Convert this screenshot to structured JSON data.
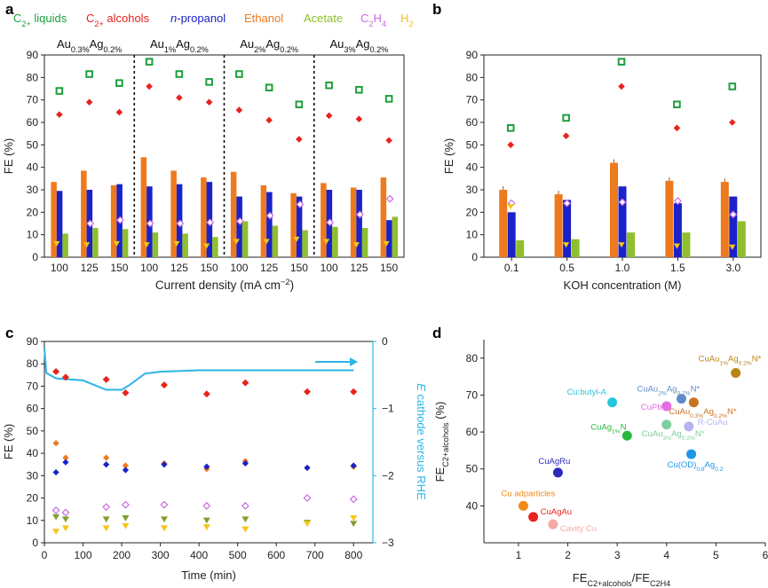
{
  "colors": {
    "c2_liquids": "#1e9e3e",
    "c2_alcohols": "#e8231e",
    "n_propanol": "#1a22c8",
    "ethanol": "#ee7a1e",
    "acetate": "#8fbf2e",
    "c2h4": "#cc6ce0",
    "h2": "#f5c518",
    "potential": "#2bb5e6"
  },
  "legend": [
    "C2+ liquids",
    "C2+ alcohols",
    "n-propanol",
    "Ethanol",
    "Acetate",
    "C2H4",
    "H2"
  ],
  "chart_data": [
    {
      "panel": "a",
      "type": "bar",
      "ylabel": "FE (%)",
      "xlabel": "Current density (mA cm−2)",
      "ylim": [
        0,
        90
      ],
      "yticks": [
        0,
        10,
        20,
        30,
        40,
        50,
        60,
        70,
        80,
        90
      ],
      "groups": [
        {
          "label": "Au0.3%Ag0.2%",
          "categories": [
            "100",
            "125",
            "150"
          ],
          "ethanol": [
            33.5,
            38.5,
            32
          ],
          "n_propanol": [
            29.5,
            30,
            32.5
          ],
          "acetate": [
            10.5,
            13,
            12.5
          ],
          "c2h4": [
            null,
            15,
            16.5
          ],
          "h2": [
            6,
            5.5,
            6
          ],
          "c2_liquids": [
            74,
            81.5,
            77.5
          ],
          "c2_alcohols": [
            63.5,
            69,
            64.5
          ]
        },
        {
          "label": "Au1%Ag0.2%",
          "categories": [
            "100",
            "125",
            "150"
          ],
          "ethanol": [
            44.5,
            38.5,
            35.5
          ],
          "n_propanol": [
            31.5,
            32.5,
            33.5
          ],
          "acetate": [
            11,
            10.5,
            9
          ],
          "c2h4": [
            15,
            15,
            15.5
          ],
          "h2": [
            5.5,
            6,
            5
          ],
          "c2_liquids": [
            87,
            81.5,
            78
          ],
          "c2_alcohols": [
            76,
            71,
            69
          ]
        },
        {
          "label": "Au2%Ag0.2%",
          "categories": [
            "100",
            "125",
            "150"
          ],
          "ethanol": [
            38,
            32,
            28.5
          ],
          "n_propanol": [
            27,
            29,
            27
          ],
          "acetate": [
            16,
            14,
            12
          ],
          "c2h4": [
            16,
            18.5,
            23.5
          ],
          "h2": [
            7,
            7,
            8
          ],
          "c2_liquids": [
            81.5,
            75.5,
            68
          ],
          "c2_alcohols": [
            65.5,
            61,
            52.5
          ]
        },
        {
          "label": "Au3%Ag0.2%",
          "categories": [
            "100",
            "125",
            "150"
          ],
          "ethanol": [
            33,
            31,
            35.5
          ],
          "n_propanol": [
            30,
            30,
            16.5
          ],
          "acetate": [
            13.5,
            13,
            18
          ],
          "c2h4": [
            15.5,
            19,
            26
          ],
          "h2": [
            7,
            5.5,
            6
          ],
          "c2_liquids": [
            76.5,
            74.5,
            70.5
          ],
          "c2_alcohols": [
            63,
            61.5,
            52
          ]
        }
      ]
    },
    {
      "panel": "b",
      "type": "bar",
      "ylabel": "FE (%)",
      "xlabel": "KOH concentration (M)",
      "ylim": [
        0,
        90
      ],
      "yticks": [
        0,
        10,
        20,
        30,
        40,
        50,
        60,
        70,
        80,
        90
      ],
      "categories": [
        "0.1",
        "0.5",
        "1.0",
        "1.5",
        "3.0"
      ],
      "ethanol": [
        30,
        28,
        42,
        34,
        33.5
      ],
      "n_propanol": [
        20,
        25.5,
        31.5,
        24,
        27
      ],
      "acetate": [
        7.5,
        8,
        11,
        11,
        16
      ],
      "c2h4": [
        24,
        24,
        24.5,
        25,
        19
      ],
      "h2": [
        22.5,
        5.5,
        5.5,
        5,
        4.5
      ],
      "c2_liquids": [
        57.5,
        62,
        87,
        68,
        76
      ],
      "c2_alcohols": [
        50,
        54,
        76,
        57.5,
        60
      ]
    },
    {
      "panel": "c",
      "type": "scatter",
      "ylabel": "FE (%)",
      "xlabel": "Time (min)",
      "y2label": "E cathode versus RHE",
      "xlim": [
        0,
        850
      ],
      "ylim": [
        0,
        90
      ],
      "y2lim": [
        -3,
        0
      ],
      "xticks": [
        0,
        100,
        200,
        300,
        400,
        500,
        600,
        700,
        800
      ],
      "yticks": [
        0,
        10,
        20,
        30,
        40,
        50,
        60,
        70,
        80,
        90
      ],
      "y2ticks": [
        0,
        -1,
        -2,
        -3
      ],
      "series": [
        {
          "name": "C2+ alcohols",
          "x": [
            30,
            55,
            160,
            210,
            310,
            420,
            520,
            680,
            800
          ],
          "y": [
            76.5,
            74,
            73,
            67,
            70.5,
            66.5,
            71.5,
            67.5,
            67.5
          ]
        },
        {
          "name": "Ethanol",
          "x": [
            30,
            55,
            160,
            210,
            310,
            420,
            520,
            680,
            800
          ],
          "y": [
            44.5,
            38,
            38,
            34.5,
            35.5,
            33,
            36.5,
            33.5,
            34
          ]
        },
        {
          "name": "n-propanol",
          "x": [
            30,
            55,
            160,
            210,
            310,
            420,
            520,
            680,
            800
          ],
          "y": [
            31.5,
            36,
            35,
            32.5,
            35,
            34,
            35.5,
            33.5,
            34.5
          ]
        },
        {
          "name": "C2H4",
          "x": [
            30,
            55,
            160,
            210,
            310,
            420,
            520,
            680,
            800
          ],
          "y": [
            14.5,
            13.5,
            16,
            17,
            17,
            16.5,
            16.5,
            20,
            19.5
          ]
        },
        {
          "name": "Acetate",
          "x": [
            30,
            55,
            160,
            210,
            310,
            420,
            520,
            680,
            800
          ],
          "y": [
            11.5,
            10.5,
            10.5,
            11,
            10.5,
            10,
            10.5,
            9,
            8.5
          ]
        },
        {
          "name": "H2",
          "x": [
            30,
            55,
            160,
            210,
            310,
            420,
            520,
            680,
            800
          ],
          "y": [
            5,
            6.5,
            6.5,
            7.5,
            6.5,
            7,
            6,
            8.5,
            11
          ]
        },
        {
          "name": "E cathode versus RHE",
          "x": [
            0,
            5,
            30,
            100,
            160,
            200,
            220,
            260,
            300,
            400,
            500,
            600,
            700,
            800
          ],
          "y": [
            -0.1,
            -0.47,
            -0.55,
            -0.58,
            -0.72,
            -0.72,
            -0.65,
            -0.48,
            -0.45,
            -0.43,
            -0.43,
            -0.43,
            -0.43,
            -0.43
          ]
        }
      ]
    },
    {
      "panel": "d",
      "type": "scatter",
      "ylabel": "FEC2+alcohols (%)",
      "xlabel": "FEC2+alcohols/FEC2H4",
      "xlim": [
        0.3,
        6
      ],
      "ylim": [
        30,
        85
      ],
      "xticks": [
        1,
        2,
        3,
        4,
        5,
        6
      ],
      "yticks": [
        40,
        50,
        60,
        70,
        80
      ],
      "points": [
        {
          "label": "CuAu1%Ag0.2%N*",
          "x": 5.4,
          "y": 76,
          "color": "#b98416"
        },
        {
          "label": "CuAu2%Ag0.2%N*",
          "x": 4.3,
          "y": 69,
          "color": "#5f8bc8"
        },
        {
          "label": "CuAu0.3%Ag0.2%N*",
          "x": 4.55,
          "y": 68,
          "color": "#c97420"
        },
        {
          "label": "Cu:butyl-A",
          "x": 2.9,
          "y": 68,
          "color": "#25c6dc"
        },
        {
          "label": "CuPb",
          "x": 4.0,
          "y": 67,
          "color": "#e46ddf"
        },
        {
          "label": "CuAg1%N",
          "x": 3.2,
          "y": 59,
          "color": "#27b83c"
        },
        {
          "label": "CuAu3%Ag0.2%N*",
          "x": 4.0,
          "y": 62,
          "color": "#7ecfa0"
        },
        {
          "label": "R-CuAu",
          "x": 4.45,
          "y": 61.5,
          "color": "#b7b2ee"
        },
        {
          "label": "Cu(OD)0.8Ag0.2",
          "x": 4.5,
          "y": 54,
          "color": "#1e95e8"
        },
        {
          "label": "CuAgRu",
          "x": 1.8,
          "y": 49,
          "color": "#2b2bb8"
        },
        {
          "label": "Cu adparticles",
          "x": 1.1,
          "y": 40,
          "color": "#f08a1a"
        },
        {
          "label": "CuAgAu",
          "x": 1.3,
          "y": 37,
          "color": "#e8231e"
        },
        {
          "label": "Cavity Cu",
          "x": 1.7,
          "y": 35,
          "color": "#f5aaa4"
        }
      ]
    }
  ],
  "panels": {
    "a": "a",
    "b": "b",
    "c": "c",
    "d": "d"
  }
}
